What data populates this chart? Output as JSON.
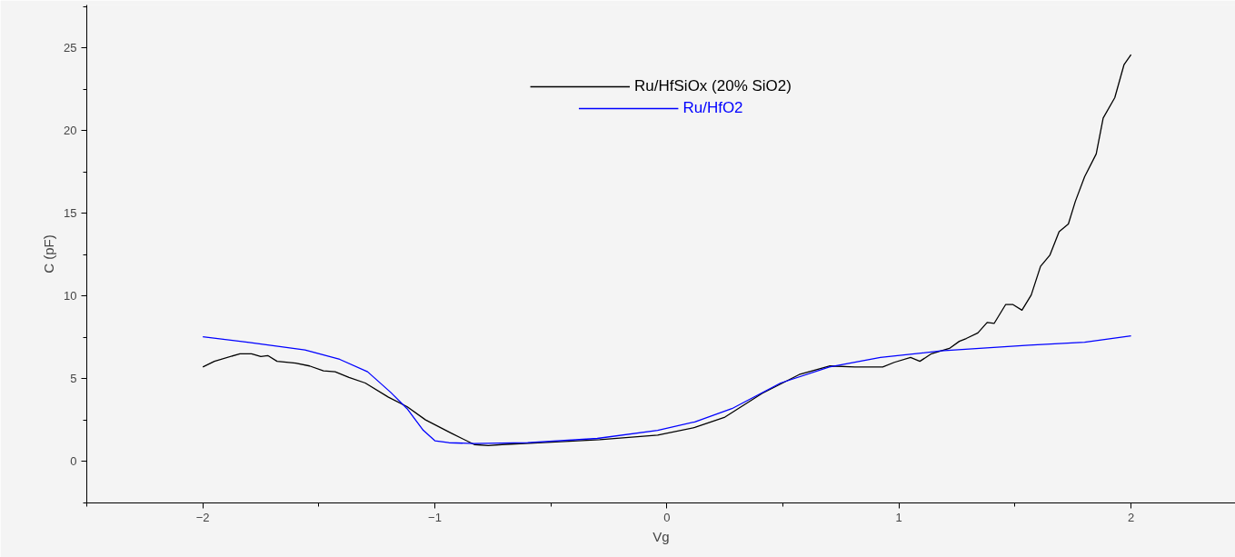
{
  "chart_data": {
    "type": "line",
    "xlabel": "Vg",
    "ylabel": "C (pF)",
    "xlim": [
      -2.5,
      2.45
    ],
    "ylim": [
      -2.5,
      27.6
    ],
    "xticks": [
      -2,
      -1,
      0,
      1,
      2
    ],
    "yticks": [
      0,
      5,
      10,
      15,
      20,
      25
    ],
    "grid": false,
    "legend": "top",
    "marker": "none",
    "line_style": "solid",
    "series": [
      {
        "name": "Ru/HfSiOx (20% SiO2)",
        "color": "#000000",
        "x": [
          -2,
          -1.95,
          -1.84,
          -1.79,
          -1.75,
          -1.72,
          -1.68,
          -1.6,
          -1.54,
          -1.48,
          -1.43,
          -1.37,
          -1.3,
          -1.2,
          -1.12,
          -1.04,
          -0.93,
          -0.83,
          -0.77,
          -0.71,
          -0.46,
          -0.29,
          -0.04,
          0.12,
          0.25,
          0.41,
          0.57,
          0.7,
          0.81,
          0.93,
          0.98,
          1.05,
          1.09,
          1.14,
          1.22,
          1.26,
          1.29,
          1.34,
          1.38,
          1.41,
          1.46,
          1.49,
          1.53,
          1.57,
          1.61,
          1.65,
          1.69,
          1.73,
          1.76,
          1.8,
          1.85,
          1.88,
          1.93,
          1.97,
          2.0
        ],
        "values": [
          5.72,
          6.06,
          6.52,
          6.52,
          6.35,
          6.41,
          6.06,
          5.95,
          5.78,
          5.49,
          5.43,
          5.09,
          4.75,
          3.89,
          3.32,
          2.52,
          1.72,
          1.03,
          0.97,
          1.03,
          1.2,
          1.32,
          1.6,
          2.06,
          2.69,
          4.12,
          5.26,
          5.78,
          5.72,
          5.72,
          6.0,
          6.29,
          6.06,
          6.52,
          6.86,
          7.27,
          7.44,
          7.78,
          8.41,
          8.35,
          9.5,
          9.5,
          9.15,
          10.07,
          11.8,
          12.47,
          13.9,
          14.36,
          15.73,
          17.22,
          18.6,
          20.77,
          22.0,
          24.0,
          24.6
        ]
      },
      {
        "name": "Ru/HfO2",
        "color": "#0000ff",
        "x": [
          -2,
          -1.8,
          -1.56,
          -1.41,
          -1.29,
          -1.19,
          -1.12,
          -1.05,
          -1.0,
          -0.94,
          -0.83,
          -0.6,
          -0.3,
          -0.04,
          0.12,
          0.28,
          0.49,
          0.7,
          0.92,
          1.18,
          1.56,
          1.8,
          2.0
        ],
        "values": [
          7.55,
          7.2,
          6.75,
          6.18,
          5.43,
          4.18,
          3.2,
          1.89,
          1.26,
          1.14,
          1.09,
          1.15,
          1.4,
          1.89,
          2.4,
          3.2,
          4.75,
          5.72,
          6.29,
          6.69,
          7.04,
          7.21,
          7.6
        ]
      }
    ]
  }
}
